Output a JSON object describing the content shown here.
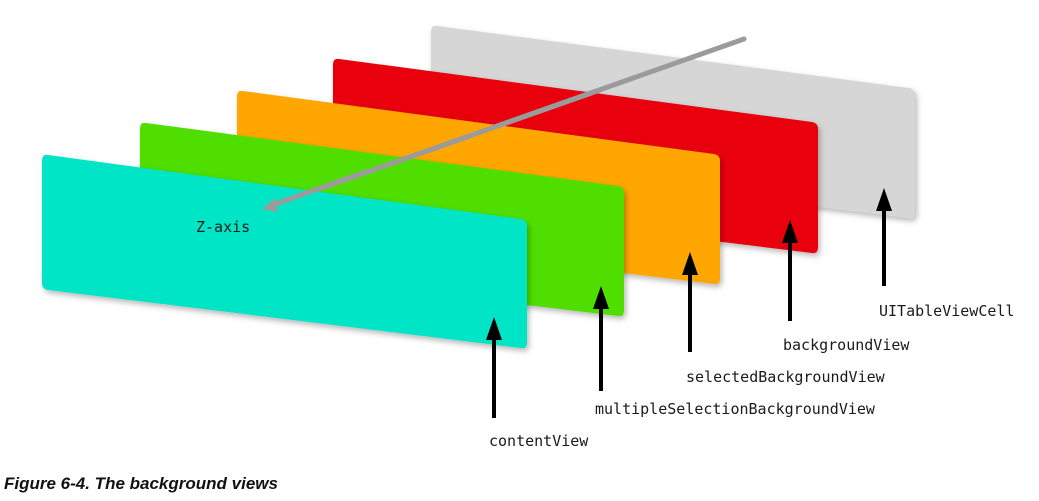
{
  "diagram": {
    "axis_label": "Z-axis",
    "layers": [
      {
        "label": "UITableViewCell",
        "color": "#d6d6d6"
      },
      {
        "label": "backgroundView",
        "color": "#e8000b"
      },
      {
        "label": "selectedBackgroundView",
        "color": "#ffa600"
      },
      {
        "label": "multipleSelectionBackgroundView",
        "color": "#4fde00"
      },
      {
        "label": "contentView",
        "color": "#00e5c6"
      }
    ],
    "caption": "Figure 6-4.  The background views"
  }
}
